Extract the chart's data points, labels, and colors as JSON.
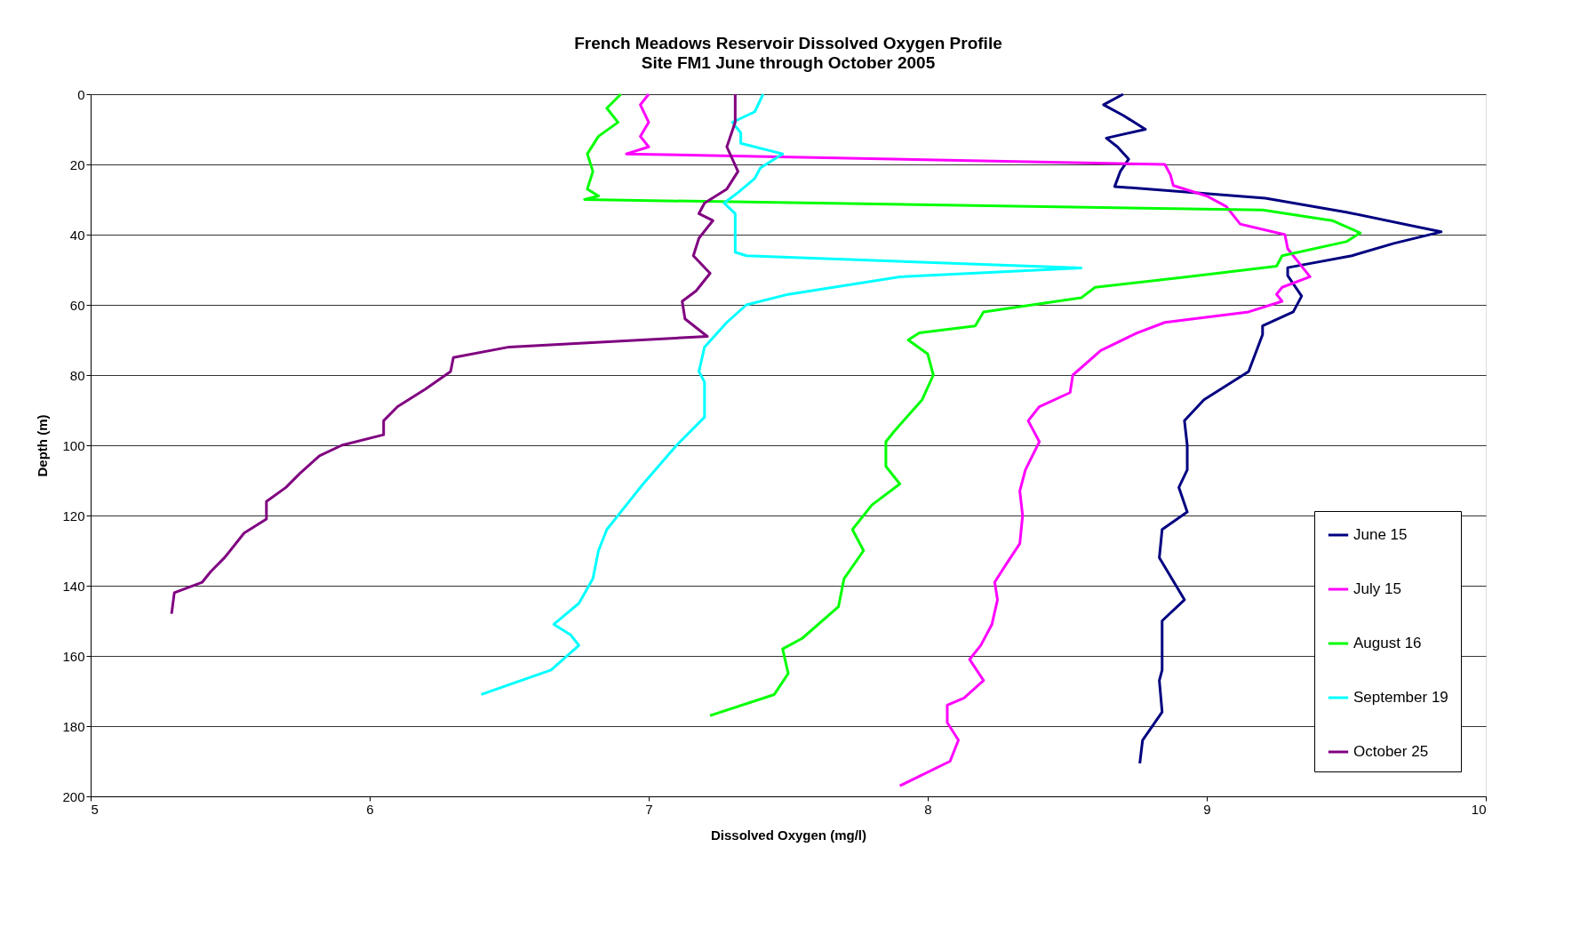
{
  "chart_data": {
    "type": "line",
    "title": "French Meadows Reservoir Dissolved Oxygen Profile",
    "subtitle": "Site FM1 June through October 2005",
    "xlabel": "Dissolved Oxygen (mg/l)",
    "ylabel": "Depth (m)",
    "xlim": [
      5,
      10
    ],
    "xticks": [
      5,
      6,
      7,
      8,
      9,
      10
    ],
    "ylim": [
      200,
      0
    ],
    "yticks": [
      0,
      20,
      40,
      60,
      80,
      100,
      120,
      140,
      160,
      180,
      200
    ],
    "grid": "y",
    "legend": "bottom right",
    "line_style": "solid",
    "marker": "none",
    "series": [
      {
        "name": "June 15",
        "color": "#000080",
        "x": [
          8.7,
          8.63,
          8.7,
          8.78,
          8.64,
          8.68,
          8.72,
          8.69,
          8.67,
          9.21,
          9.5,
          9.84,
          9.67,
          9.52,
          9.29,
          9.29,
          9.34,
          9.31,
          9.2,
          9.2,
          9.15,
          8.99,
          8.92,
          8.93,
          8.93,
          8.9,
          8.93,
          8.84,
          8.83,
          8.92,
          8.84,
          8.84,
          8.83,
          8.84,
          8.77,
          8.76
        ],
        "values": [
          0,
          3,
          6,
          10,
          12.5,
          15,
          18.5,
          22,
          26.3,
          29.6,
          33.6,
          39.2,
          42.5,
          46,
          49.4,
          51.7,
          57.5,
          62,
          66,
          68.5,
          79,
          87,
          93,
          100,
          107,
          112,
          119,
          124,
          132,
          144,
          150,
          164,
          167,
          176,
          184,
          190.6
        ]
      },
      {
        "name": "July 15",
        "color": "#ff00ff",
        "x": [
          7.0,
          6.97,
          7.0,
          6.97,
          7.0,
          6.92,
          8.85,
          8.87,
          8.88,
          9.0,
          9.07,
          9.12,
          9.28,
          9.29,
          9.32,
          9.37,
          9.27,
          9.25,
          9.27,
          9.15,
          8.85,
          8.75,
          8.62,
          8.52,
          8.51,
          8.4,
          8.36,
          8.4,
          8.35,
          8.33,
          8.34,
          8.33,
          8.28,
          8.24,
          8.25,
          8.23,
          8.19,
          8.15,
          8.2,
          8.13,
          8.07,
          8.07,
          8.11,
          8.08,
          7.9
        ],
        "values": [
          0,
          3,
          8,
          12,
          15,
          17,
          20,
          23,
          26,
          29,
          32,
          37,
          40,
          44,
          47,
          52,
          55,
          57,
          59,
          62,
          65,
          68,
          73,
          80,
          85,
          89,
          93,
          99,
          107,
          113,
          120,
          128,
          134,
          139,
          144,
          151,
          157,
          161,
          167,
          172,
          174,
          179,
          184,
          190,
          197
        ]
      },
      {
        "name": "August 16",
        "color": "#00ff00",
        "x": [
          6.9,
          6.85,
          6.89,
          6.82,
          6.78,
          6.8,
          6.78,
          6.82,
          6.77,
          9.2,
          9.45,
          9.55,
          9.5,
          9.27,
          9.25,
          8.93,
          8.6,
          8.55,
          8.2,
          8.17,
          7.97,
          7.93,
          8.0,
          8.02,
          7.98,
          7.88,
          7.85,
          7.85,
          7.9,
          7.8,
          7.73,
          7.77,
          7.7,
          7.68,
          7.55,
          7.48,
          7.5,
          7.45,
          7.22
        ],
        "values": [
          0,
          4,
          8,
          12,
          17,
          22,
          27,
          29,
          30,
          33,
          36,
          39.5,
          42,
          46,
          49,
          52,
          55,
          58,
          62,
          66,
          68,
          70,
          74,
          80,
          87,
          96,
          99,
          106,
          111,
          117,
          124,
          130,
          138,
          146,
          155,
          158,
          165,
          171,
          177
        ]
      },
      {
        "name": "September 19",
        "color": "#00ffff",
        "x": [
          7.41,
          7.38,
          7.3,
          7.33,
          7.33,
          7.48,
          7.4,
          7.38,
          7.32,
          7.27,
          7.31,
          7.31,
          7.35,
          8.55,
          7.9,
          7.5,
          7.35,
          7.28,
          7.2,
          7.18,
          7.2,
          7.2,
          7.1,
          6.98,
          6.92,
          6.85,
          6.82,
          6.8,
          6.75,
          6.66,
          6.72,
          6.75,
          6.65,
          6.4
        ],
        "values": [
          0,
          5,
          8,
          11,
          14,
          17,
          21,
          24,
          28,
          31,
          34,
          45,
          46,
          49.5,
          52,
          57,
          60,
          65,
          72,
          79,
          82,
          92,
          100,
          111,
          117,
          124,
          130,
          138,
          145,
          151,
          154,
          157,
          164,
          171
        ]
      },
      {
        "name": "October 25",
        "color": "#800080",
        "x": [
          7.31,
          7.31,
          7.28,
          7.32,
          7.28,
          7.2,
          7.18,
          7.23,
          7.18,
          7.16,
          7.22,
          7.17,
          7.12,
          7.13,
          7.21,
          6.5,
          6.3,
          6.29,
          6.2,
          6.1,
          6.05,
          6.05,
          5.9,
          5.82,
          5.75,
          5.7,
          5.63,
          5.63,
          5.55,
          5.48,
          5.43,
          5.4,
          5.3,
          5.29
        ],
        "values": [
          0,
          8,
          15,
          22,
          27,
          31,
          34,
          36,
          41,
          46,
          51,
          56,
          59,
          64,
          69,
          72,
          75,
          79,
          84,
          89,
          93,
          97,
          100,
          103,
          108,
          112,
          116,
          121,
          125,
          132,
          136,
          139,
          142,
          148
        ]
      }
    ]
  }
}
